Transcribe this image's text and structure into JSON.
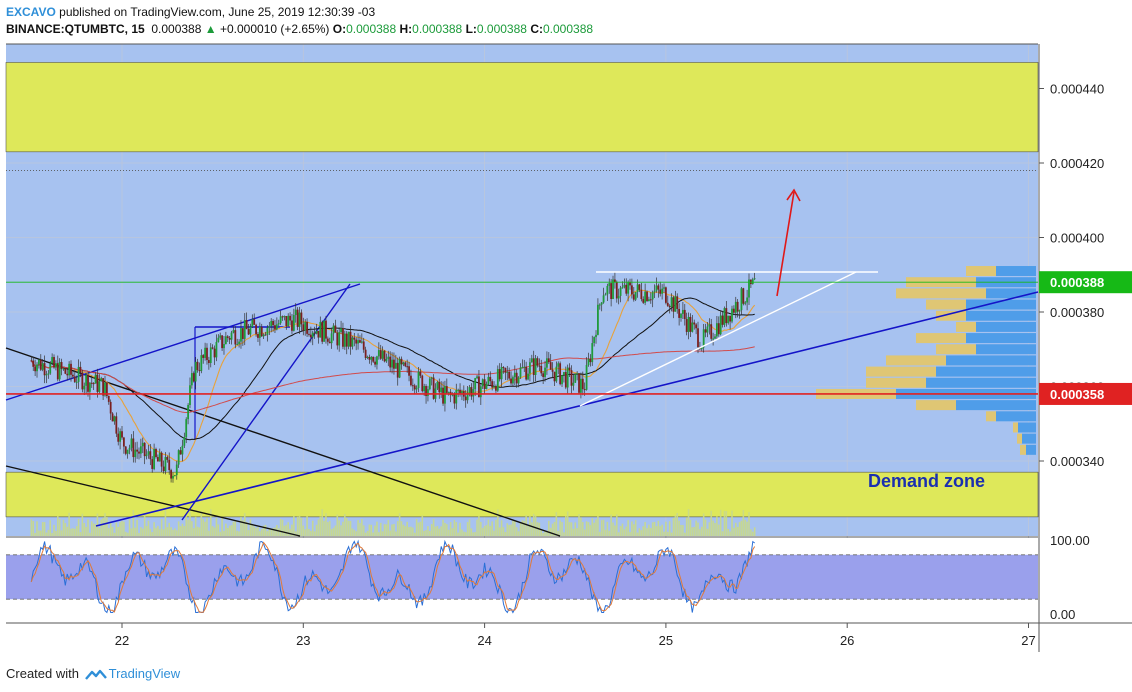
{
  "header": {
    "author": "EXCAVO",
    "published_text": "published on TradingView.com, June 25, 2019 12:30:39 -03",
    "symbol": "BINANCE:QTUMBTC, 15",
    "price": "0.000388",
    "change": "+0.000010 (+2.65%)",
    "o_label": "O:",
    "o_value": "0.000388",
    "h_label": "H:",
    "h_value": "0.000388",
    "l_label": "L:",
    "l_value": "0.000388",
    "c_label": "C:",
    "c_value": "0.000388"
  },
  "footer": {
    "created_with": "Created with",
    "brand": "TradingView"
  },
  "chart_data": {
    "type": "candlestick",
    "title": "",
    "annotation": "Demand zone",
    "y_ticks": [
      "0.000440",
      "0.000420",
      "0.000400",
      "0.000380",
      "0.000360",
      "0.000340"
    ],
    "ylim": [
      0.00033,
      0.00045
    ],
    "x_ticks": [
      "22",
      "23",
      "24",
      "25",
      "26",
      "27"
    ],
    "current_price_label": "0.000388",
    "marked_level_label": "0.000358",
    "supply_zone": [
      0.000423,
      0.000447
    ],
    "demand_zone": [
      0.000325,
      0.000337
    ],
    "dotted_level": 0.000418,
    "approx_close_path": [
      {
        "day": 21.5,
        "price": 0.000367
      },
      {
        "day": 21.9,
        "price": 0.00036
      },
      {
        "day": 22.0,
        "price": 0.000345
      },
      {
        "day": 22.3,
        "price": 0.000337
      },
      {
        "day": 22.4,
        "price": 0.000365
      },
      {
        "day": 22.6,
        "price": 0.000374
      },
      {
        "day": 22.95,
        "price": 0.000378
      },
      {
        "day": 23.3,
        "price": 0.000371
      },
      {
        "day": 23.8,
        "price": 0.000357
      },
      {
        "day": 24.3,
        "price": 0.000366
      },
      {
        "day": 24.55,
        "price": 0.00036
      },
      {
        "day": 24.65,
        "price": 0.000386
      },
      {
        "day": 25.0,
        "price": 0.000385
      },
      {
        "day": 25.2,
        "price": 0.000372
      },
      {
        "day": 25.5,
        "price": 0.000388
      }
    ],
    "stoch_rsi": {
      "ylim": [
        0,
        100
      ],
      "y_ticks": [
        "100.00",
        "0.00"
      ],
      "bands": [
        20,
        80
      ]
    }
  },
  "colors": {
    "plot_bg": "#a7c2f0",
    "zone_yellow": "#dee85a",
    "up_candle": "#1f9a3a",
    "down_candle": "#7a1f1f",
    "trend_blue": "#1414c8",
    "level_red": "#e02222",
    "price_green": "#16b916",
    "arrow_red": "#e01818",
    "oscillator_bg": "#9aa0ec"
  }
}
